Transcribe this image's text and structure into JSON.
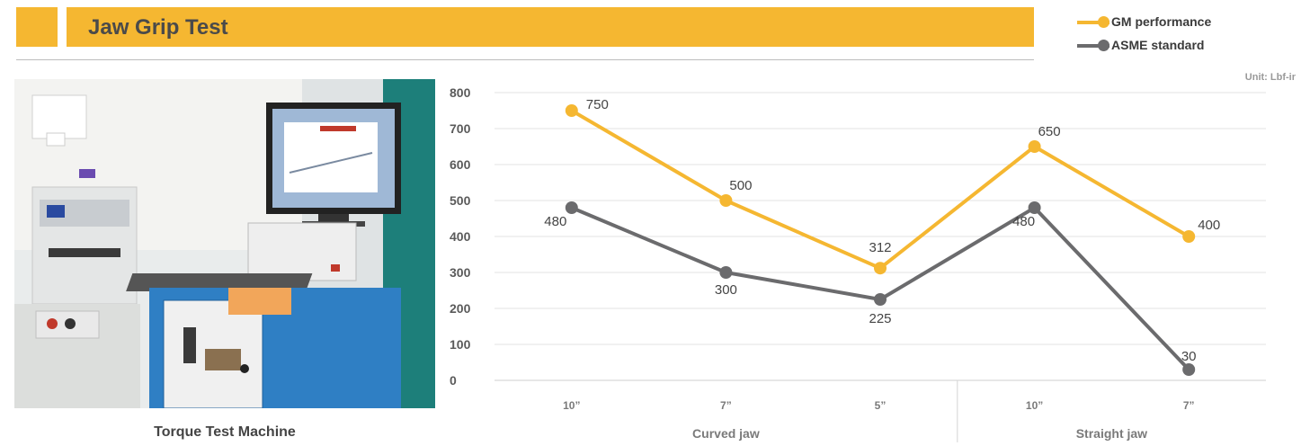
{
  "header": {
    "title": "Jaw Grip Test"
  },
  "photo": {
    "caption": "Torque Test Machine"
  },
  "legend": {
    "items": [
      {
        "label": "GM performance",
        "color": "#F5B731"
      },
      {
        "label": "ASME standard",
        "color": "#6B6B6D"
      }
    ]
  },
  "unit_label": "Unit: Lbf-ir",
  "chart_data": {
    "type": "line",
    "x": [
      "10”",
      "7”",
      "5”",
      "10”",
      "7”"
    ],
    "groups": [
      {
        "label": "Curved jaw",
        "indices": [
          0,
          1,
          2
        ]
      },
      {
        "label": "Straight jaw",
        "indices": [
          3,
          4
        ]
      }
    ],
    "series": [
      {
        "name": "GM performance",
        "color": "#F5B731",
        "values": [
          750,
          500,
          312,
          650,
          400
        ]
      },
      {
        "name": "ASME standard",
        "color": "#6B6B6D",
        "values": [
          480,
          300,
          225,
          480,
          30
        ]
      }
    ],
    "ylim": [
      0,
      800
    ],
    "yticks": [
      0,
      100,
      200,
      300,
      400,
      500,
      600,
      700,
      800
    ],
    "grid": true
  }
}
